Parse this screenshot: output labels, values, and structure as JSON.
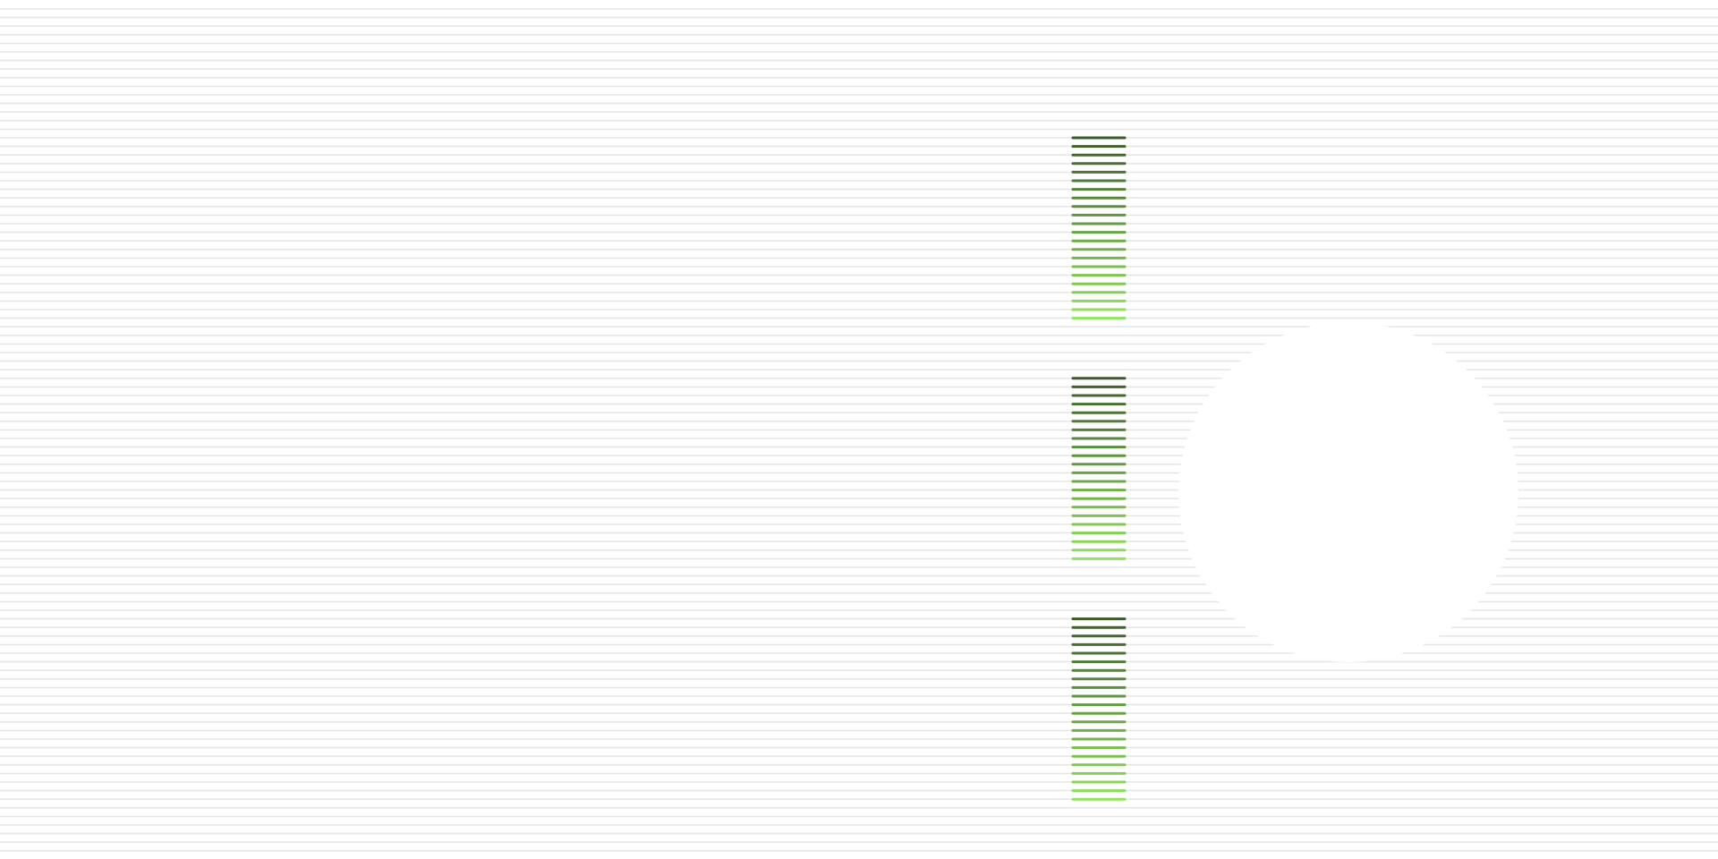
{
  "colors": {
    "background": "#ffffff",
    "stripe": "#e6e6e6",
    "bar_dark": "#3d5a2c",
    "bar_light": "#92e35e",
    "circle": "#ffffff"
  },
  "stripes": {
    "count": 99
  },
  "bar_groups": [
    {
      "bar_count": 22
    },
    {
      "bar_count": 22
    },
    {
      "bar_count": 22
    }
  ]
}
